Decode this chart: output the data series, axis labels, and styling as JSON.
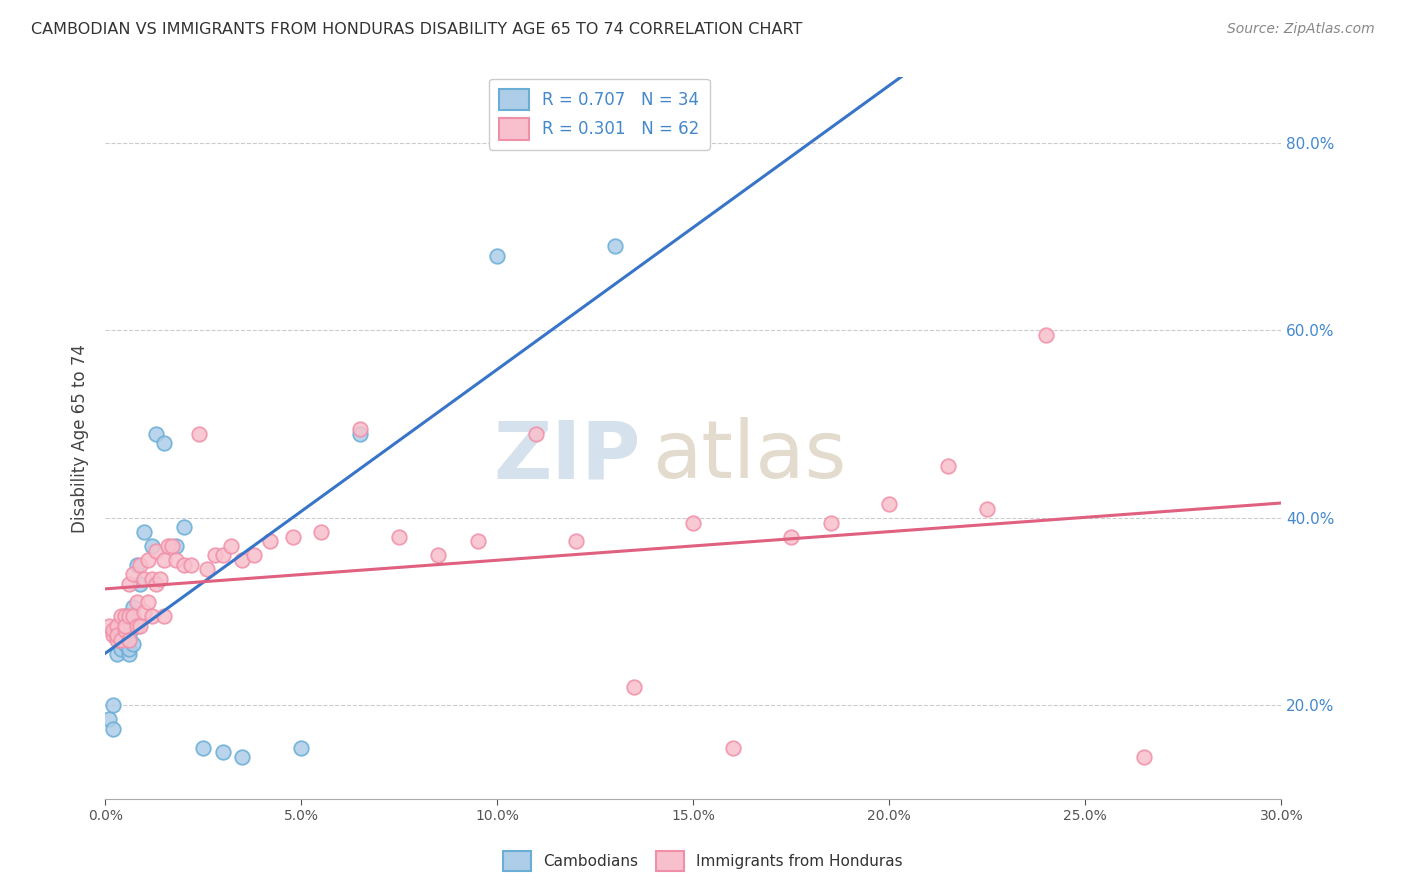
{
  "title": "CAMBODIAN VS IMMIGRANTS FROM HONDURAS DISABILITY AGE 65 TO 74 CORRELATION CHART",
  "source": "Source: ZipAtlas.com",
  "ylabel": "Disability Age 65 to 74",
  "xlim": [
    0.0,
    0.3
  ],
  "ylim": [
    0.1,
    0.87
  ],
  "xticks": [
    0.0,
    0.05,
    0.1,
    0.15,
    0.2,
    0.25,
    0.3
  ],
  "yticks": [
    0.2,
    0.4,
    0.6,
    0.8
  ],
  "cambodian_color_edge": "#6aaed6",
  "cambodian_color_face": "#aecde8",
  "honduras_color_edge": "#f090a8",
  "honduras_color_face": "#f8c0cc",
  "line_blue": "#3875c8",
  "line_pink": "#e06080",
  "R_cambodian": 0.707,
  "N_cambodian": 34,
  "R_honduras": 0.301,
  "N_honduras": 62,
  "cambodian_x": [
    0.001,
    0.002,
    0.002,
    0.003,
    0.003,
    0.003,
    0.004,
    0.004,
    0.004,
    0.005,
    0.005,
    0.005,
    0.006,
    0.006,
    0.006,
    0.007,
    0.007,
    0.007,
    0.008,
    0.008,
    0.009,
    0.01,
    0.012,
    0.013,
    0.015,
    0.018,
    0.02,
    0.025,
    0.03,
    0.035,
    0.05,
    0.065,
    0.1,
    0.13
  ],
  "cambodian_y": [
    0.185,
    0.175,
    0.2,
    0.255,
    0.275,
    0.285,
    0.26,
    0.27,
    0.28,
    0.265,
    0.285,
    0.295,
    0.255,
    0.275,
    0.26,
    0.285,
    0.305,
    0.265,
    0.285,
    0.35,
    0.33,
    0.385,
    0.37,
    0.49,
    0.48,
    0.37,
    0.39,
    0.155,
    0.15,
    0.145,
    0.155,
    0.49,
    0.68,
    0.69
  ],
  "honduras_x": [
    0.001,
    0.002,
    0.002,
    0.003,
    0.003,
    0.003,
    0.004,
    0.004,
    0.005,
    0.005,
    0.005,
    0.006,
    0.006,
    0.006,
    0.007,
    0.007,
    0.008,
    0.008,
    0.009,
    0.009,
    0.01,
    0.01,
    0.011,
    0.011,
    0.012,
    0.012,
    0.013,
    0.013,
    0.014,
    0.015,
    0.015,
    0.016,
    0.017,
    0.018,
    0.02,
    0.022,
    0.024,
    0.026,
    0.028,
    0.03,
    0.032,
    0.035,
    0.038,
    0.042,
    0.048,
    0.055,
    0.065,
    0.075,
    0.085,
    0.095,
    0.11,
    0.12,
    0.135,
    0.15,
    0.16,
    0.175,
    0.185,
    0.2,
    0.215,
    0.225,
    0.24,
    0.265
  ],
  "honduras_y": [
    0.285,
    0.275,
    0.28,
    0.27,
    0.285,
    0.275,
    0.295,
    0.27,
    0.28,
    0.295,
    0.285,
    0.27,
    0.295,
    0.33,
    0.295,
    0.34,
    0.285,
    0.31,
    0.285,
    0.35,
    0.3,
    0.335,
    0.31,
    0.355,
    0.295,
    0.335,
    0.33,
    0.365,
    0.335,
    0.295,
    0.355,
    0.37,
    0.37,
    0.355,
    0.35,
    0.35,
    0.49,
    0.345,
    0.36,
    0.36,
    0.37,
    0.355,
    0.36,
    0.375,
    0.38,
    0.385,
    0.495,
    0.38,
    0.36,
    0.375,
    0.49,
    0.375,
    0.22,
    0.395,
    0.155,
    0.38,
    0.395,
    0.415,
    0.455,
    0.41,
    0.595,
    0.145
  ],
  "watermark_zip_color": "#c8d8e8",
  "watermark_atlas_color": "#d8cdb8",
  "legend_R_color": "#4488cc",
  "legend_N_color": "#4488cc",
  "right_axis_color": "#4488cc",
  "grid_color": "#cccccc"
}
